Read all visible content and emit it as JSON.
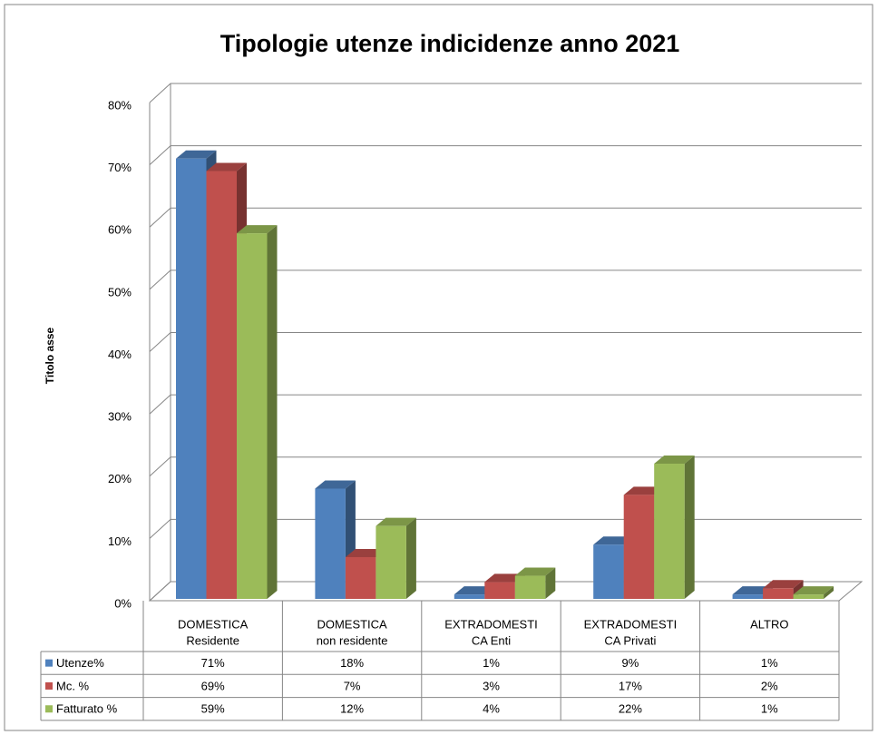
{
  "chart_data": {
    "type": "bar3d",
    "title": "Tipologie utenze indicidenze anno 2021",
    "y_label": "Titolo asse",
    "categories": [
      [
        "DOMESTICA",
        "Residente"
      ],
      [
        "DOMESTICA",
        "non residente"
      ],
      [
        "EXTRADOMESTI",
        "CA Enti"
      ],
      [
        "EXTRADOMESTI",
        "CA Privati"
      ],
      [
        "ALTRO"
      ]
    ],
    "series": [
      {
        "name": "Utenze%",
        "color": "#4f81bd",
        "values": [
          71,
          18,
          1,
          9,
          1
        ],
        "value_labels": [
          "71%",
          "18%",
          "1%",
          "9%",
          "1%"
        ]
      },
      {
        "name": "Mc. %",
        "color": "#c0504d",
        "values": [
          69,
          7,
          3,
          17,
          2
        ],
        "value_labels": [
          "69%",
          "7%",
          "3%",
          "17%",
          "2%"
        ]
      },
      {
        "name": "Fatturato %",
        "color": "#9bbb59",
        "values": [
          59,
          12,
          4,
          22,
          1
        ],
        "value_labels": [
          "59%",
          "12%",
          "4%",
          "22%",
          "1%"
        ]
      }
    ],
    "ylim": [
      0,
      80
    ],
    "yticks": [
      {
        "value": 0,
        "label": "0%"
      },
      {
        "value": 10,
        "label": "10%"
      },
      {
        "value": 20,
        "label": "20%"
      },
      {
        "value": 30,
        "label": "30%"
      },
      {
        "value": 40,
        "label": "40%"
      },
      {
        "value": 50,
        "label": "50%"
      },
      {
        "value": 60,
        "label": "60%"
      },
      {
        "value": 70,
        "label": "70%"
      },
      {
        "value": 80,
        "label": "80%"
      }
    ],
    "grid": true,
    "data_table": true
  }
}
